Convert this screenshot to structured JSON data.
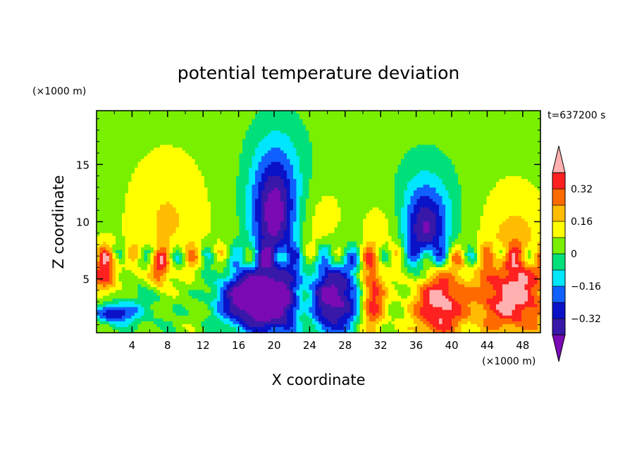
{
  "chart_data": {
    "type": "heatmap",
    "title": "potential temperature deviation",
    "xlabel": "X coordinate",
    "ylabel": "Z coordinate",
    "x_unit": "(×1000 m)",
    "y_unit": "(×1000 m)",
    "time_label": "t=637200 s",
    "xlim": [
      0,
      50
    ],
    "ylim": [
      0.3,
      19.7
    ],
    "x_ticks": [
      4,
      8,
      12,
      16,
      20,
      24,
      28,
      32,
      36,
      40,
      44,
      48
    ],
    "y_ticks": [
      5,
      10,
      15
    ],
    "colorbar": {
      "levels": [
        -0.4,
        -0.32,
        -0.24,
        -0.16,
        -0.08,
        0,
        0.08,
        0.16,
        0.24,
        0.32,
        0.4
      ],
      "colors": [
        "#7a0ab4",
        "#3818a8",
        "#0a12c8",
        "#1060ff",
        "#00e6ff",
        "#00e07a",
        "#78f000",
        "#ffff00",
        "#ffbc00",
        "#ff6a00",
        "#ff2020",
        "#ffb0b0"
      ],
      "labels": [
        "0.32",
        "0.16",
        "0",
        "−0.16",
        "−0.32"
      ],
      "label_values": [
        0.32,
        0.16,
        0,
        -0.16,
        -0.32
      ]
    },
    "features": [
      {
        "x": 20,
        "z": 10.3,
        "sx": 1.8,
        "sz": 3.5,
        "amp": -0.44
      },
      {
        "x": 20.5,
        "z": 14.5,
        "sx": 2.8,
        "sz": 4.0,
        "amp": -0.13
      },
      {
        "x": 37,
        "z": 9.0,
        "sx": 1.8,
        "sz": 2.5,
        "amp": -0.4
      },
      {
        "x": 37,
        "z": 12.0,
        "sx": 2.8,
        "sz": 3.5,
        "amp": -0.12
      },
      {
        "x": 8,
        "z": 10.0,
        "sx": 3.0,
        "sz": 4.0,
        "amp": 0.12
      },
      {
        "x": 25,
        "z": 9.0,
        "sx": 2.0,
        "sz": 3.0,
        "amp": 0.1
      },
      {
        "x": 33,
        "z": 9.0,
        "sx": 2.0,
        "sz": 2.5,
        "amp": 0.09
      },
      {
        "x": 47,
        "z": 9.0,
        "sx": 2.5,
        "sz": 3.0,
        "amp": 0.12
      },
      {
        "x": 20,
        "z": 2.8,
        "sx": 3.5,
        "sz": 2.2,
        "amp": -0.5
      },
      {
        "x": 27,
        "z": 3.5,
        "sx": 2.2,
        "sz": 2.5,
        "amp": -0.45
      },
      {
        "x": 16.5,
        "z": 3.5,
        "sx": 2.0,
        "sz": 1.5,
        "amp": -0.3
      },
      {
        "x": 38.5,
        "z": 3.0,
        "sx": 2.0,
        "sz": 2.5,
        "amp": 0.42
      },
      {
        "x": 31,
        "z": 3.5,
        "sx": 1.0,
        "sz": 2.5,
        "amp": 0.38
      },
      {
        "x": 23.5,
        "z": 2.5,
        "sx": 1.0,
        "sz": 1.8,
        "amp": 0.3
      },
      {
        "x": 47.5,
        "z": 3.5,
        "sx": 2.5,
        "sz": 2.5,
        "amp": 0.35
      },
      {
        "x": 1,
        "z": 5.5,
        "sx": 1.2,
        "sz": 1.5,
        "amp": 0.3
      },
      {
        "x": 7,
        "z": 5.5,
        "sx": 0.8,
        "sz": 1.0,
        "amp": 0.25
      },
      {
        "x": 2,
        "z": 2.0,
        "sx": 1.5,
        "sz": 0.6,
        "amp": -0.35
      },
      {
        "x": 5,
        "z": 3.0,
        "sx": 3.0,
        "sz": 2.0,
        "amp": -0.1
      },
      {
        "x": 44,
        "z": 3.0,
        "sx": 2.0,
        "sz": 2.0,
        "amp": 0.12
      }
    ]
  }
}
